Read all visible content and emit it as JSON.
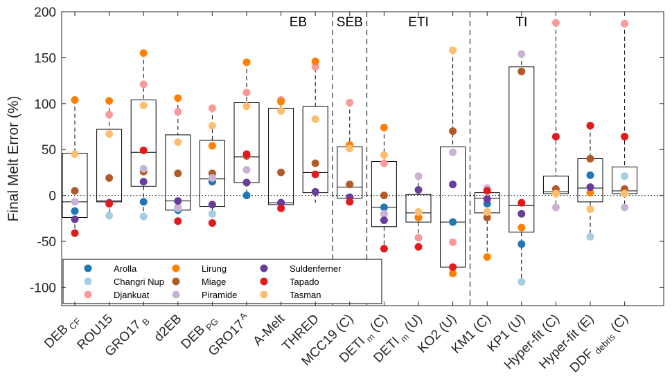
{
  "chart_data": {
    "type": "box",
    "ylabel": "Final Melt Error (%)",
    "ylim": [
      -120,
      200
    ],
    "yticks": [
      -100,
      -50,
      0,
      50,
      100,
      150,
      200
    ],
    "grid": false,
    "zero_line": "dotted",
    "legend_placement": "bottom-left",
    "group_labels": [
      {
        "label": "EB",
        "center_index": 6.5
      },
      {
        "label": "SEB",
        "center_index": 8
      },
      {
        "label": "ETI",
        "center_index": 10
      },
      {
        "label": "TI",
        "center_index": 13
      }
    ],
    "separators_after_index": [
      7.5,
      8.5,
      11.5
    ],
    "models": [
      {
        "base": "DEB",
        "sub": "CF",
        "sup": "",
        "suffix": ""
      },
      {
        "base": "ROU15",
        "sub": "",
        "sup": "",
        "suffix": ""
      },
      {
        "base": "GRO17",
        "sub": "B",
        "sup": "",
        "suffix": ""
      },
      {
        "base": "d2EB",
        "sub": "",
        "sup": "",
        "suffix": ""
      },
      {
        "base": "DEB",
        "sub": "PG",
        "sup": "",
        "suffix": ""
      },
      {
        "base": "GRO17",
        "sub": "",
        "sup": "A",
        "suffix": ""
      },
      {
        "base": "A-Melt",
        "sub": "",
        "sup": "",
        "suffix": ""
      },
      {
        "base": "THRED",
        "sub": "",
        "sup": "",
        "suffix": ""
      },
      {
        "base": "MCC19 (C)",
        "sub": "",
        "sup": "",
        "suffix": ""
      },
      {
        "base": "DETI",
        "sub": "m",
        "sup": "",
        "suffix": " (C)"
      },
      {
        "base": "DETI",
        "sub": "m",
        "sup": "",
        "suffix": " (U)"
      },
      {
        "base": "KO2 (U)",
        "sub": "",
        "sup": "",
        "suffix": ""
      },
      {
        "base": "KM1 (C)",
        "sub": "",
        "sup": "",
        "suffix": ""
      },
      {
        "base": "KP1 (U)",
        "sub": "",
        "sup": "",
        "suffix": ""
      },
      {
        "base": "Hyper-fit (C)",
        "sub": "",
        "sup": "",
        "suffix": ""
      },
      {
        "base": "Hyper-fit (E)",
        "sub": "",
        "sup": "",
        "suffix": ""
      },
      {
        "base": "DDF",
        "sub": "debris",
        "sup": "",
        "suffix": " (C)"
      }
    ],
    "boxes": [
      {
        "q1": -24,
        "median": -7,
        "q3": 46,
        "wlow": -41,
        "whigh": 104
      },
      {
        "q1": -7,
        "median": -6,
        "q3": 72,
        "wlow": -22,
        "whigh": 103
      },
      {
        "q1": 10,
        "median": 47,
        "q3": 104,
        "wlow": -23,
        "whigh": 155
      },
      {
        "q1": -16,
        "median": -6,
        "q3": 66,
        "wlow": -28,
        "whigh": 106
      },
      {
        "q1": -12,
        "median": 18,
        "q3": 60,
        "wlow": -30,
        "whigh": 95
      },
      {
        "q1": 14,
        "median": 42,
        "q3": 101,
        "wlow": 0,
        "whigh": 145
      },
      {
        "q1": -10,
        "median": -8,
        "q3": 95,
        "wlow": -14,
        "whigh": 105
      },
      {
        "q1": 3,
        "median": 25,
        "q3": 97,
        "wlow": -8,
        "whigh": 146
      },
      {
        "q1": -3,
        "median": 9,
        "q3": 53,
        "wlow": -7,
        "whigh": 101
      },
      {
        "q1": -34,
        "median": -13,
        "q3": 37,
        "wlow": -58,
        "whigh": 74
      },
      {
        "q1": -29,
        "median": -19,
        "q3": 1,
        "wlow": -56,
        "whigh": 21
      },
      {
        "q1": -78,
        "median": -29,
        "q3": 53,
        "wlow": -85,
        "whigh": 158
      },
      {
        "q1": -19,
        "median": -3,
        "q3": 3,
        "wlow": -67,
        "whigh": 8
      },
      {
        "q1": -40,
        "median": -11,
        "q3": 140,
        "wlow": -94,
        "whigh": 154
      },
      {
        "q1": 2,
        "median": 4,
        "q3": 21,
        "wlow": -13,
        "whigh": 188
      },
      {
        "q1": -7,
        "median": 8,
        "q3": 40,
        "wlow": -45,
        "whigh": 76
      },
      {
        "q1": 2,
        "median": 5,
        "q3": 31,
        "wlow": -13,
        "whigh": 188
      }
    ],
    "series": [
      {
        "name": "Arolla",
        "color": "#1f77b4",
        "values": [
          -17,
          null,
          -7,
          -16,
          15,
          0,
          -8,
          null,
          null,
          -13,
          -24,
          -29,
          -9,
          -53,
          null,
          22,
          null
        ]
      },
      {
        "name": "Changri Nup",
        "color": "#a6cee3",
        "values": [
          null,
          -22,
          -23,
          -14,
          -20,
          null,
          null,
          null,
          null,
          null,
          null,
          null,
          null,
          -94,
          null,
          -45,
          21
        ]
      },
      {
        "name": "Djankuat",
        "color": "#fb9a99",
        "values": [
          null,
          88,
          121,
          91,
          95,
          112,
          104,
          140,
          101,
          35,
          -46,
          -51,
          null,
          null,
          188,
          null,
          187
        ]
      },
      {
        "name": "Lirung",
        "color": "#ff7f00",
        "values": [
          104,
          103,
          155,
          106,
          54,
          145,
          102,
          146,
          55,
          74,
          -24,
          -85,
          -67,
          -35,
          null,
          3,
          null
        ]
      },
      {
        "name": "Miage",
        "color": "#b15928",
        "values": [
          5,
          19,
          26,
          24,
          24,
          43,
          25,
          35,
          12,
          0,
          null,
          70,
          -24,
          135,
          7,
          40,
          7
        ]
      },
      {
        "name": "Piramide",
        "color": "#cab2d6",
        "values": [
          -7,
          null,
          29,
          -13,
          19,
          28,
          null,
          null,
          null,
          -20,
          21,
          47,
          8,
          154,
          -13,
          null,
          -13
        ]
      },
      {
        "name": "Suldenferner",
        "color": "#6a3d9a",
        "values": [
          -26,
          -8,
          15,
          -6,
          -10,
          14,
          -8,
          4,
          -2,
          -27,
          6,
          12,
          -4,
          -20,
          null,
          9,
          null
        ]
      },
      {
        "name": "Tapado",
        "color": "#e31a1c",
        "values": [
          -41,
          -9,
          49,
          -28,
          -30,
          45,
          -14,
          23,
          -7,
          -58,
          -56,
          -78,
          5,
          -8,
          64,
          76,
          64
        ]
      },
      {
        "name": "Tasman",
        "color": "#fdbf6f",
        "values": [
          45,
          67,
          98,
          58,
          76,
          97,
          92,
          83,
          51,
          44,
          -18,
          158,
          -18,
          null,
          2,
          -15,
          2
        ]
      }
    ]
  }
}
